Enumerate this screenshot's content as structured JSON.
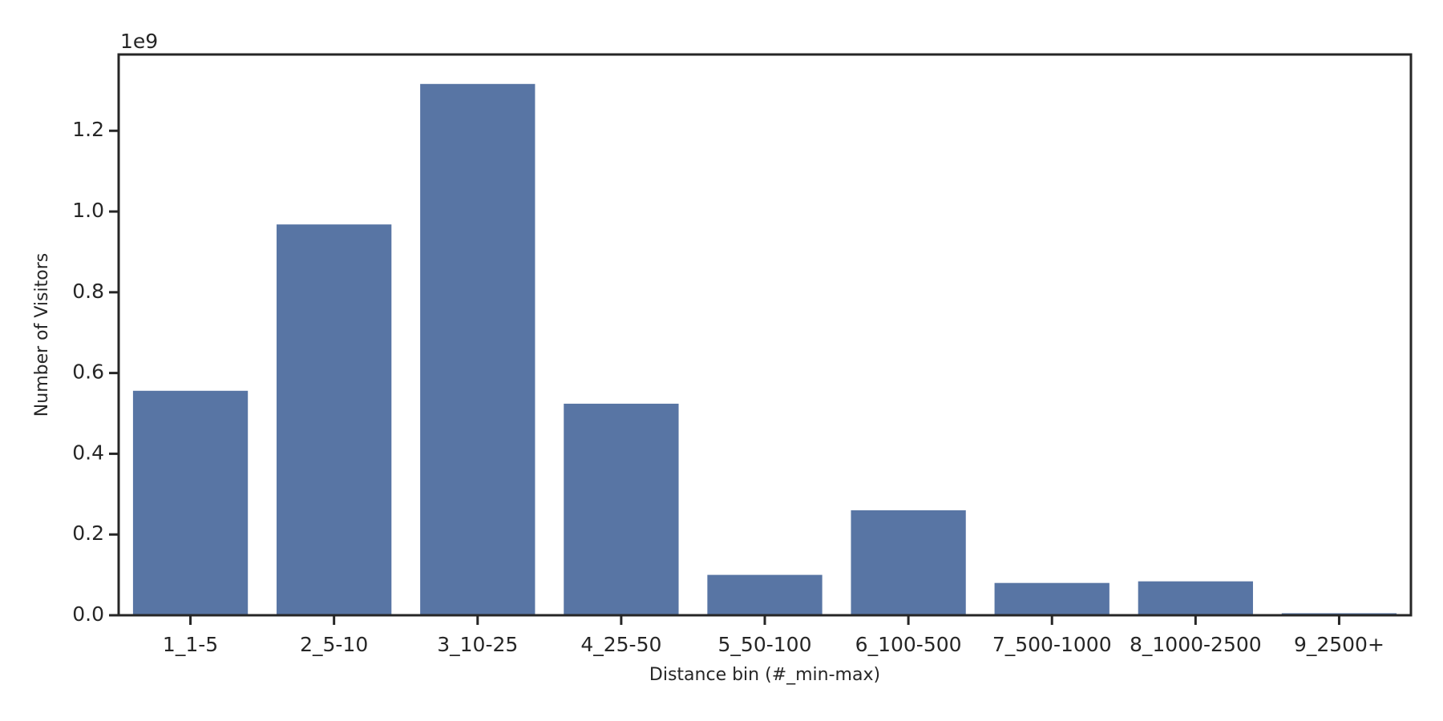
{
  "chart_data": {
    "type": "bar",
    "x_label": "Distance bin (#_min-max)",
    "y_label": "Number of Visitors",
    "y_offset_label": "1e9",
    "categories": [
      "1_1-5",
      "2_5-10",
      "3_10-25",
      "4_25-50",
      "5_50-100",
      "6_100-500",
      "7_500-1000",
      "8_1000-2500",
      "9_2500+"
    ],
    "values": [
      0.556,
      0.968,
      1.316,
      0.524,
      0.1,
      0.26,
      0.08,
      0.084,
      0.005
    ],
    "color": "#5875a4",
    "ylim": [
      0,
      1.389
    ],
    "yticks": [
      {
        "value": 0,
        "label": "0.0"
      },
      0.2,
      0.4,
      0.6,
      0.8,
      {
        "value": 1,
        "label": "1.0"
      },
      1.2
    ],
    "grid": false
  }
}
